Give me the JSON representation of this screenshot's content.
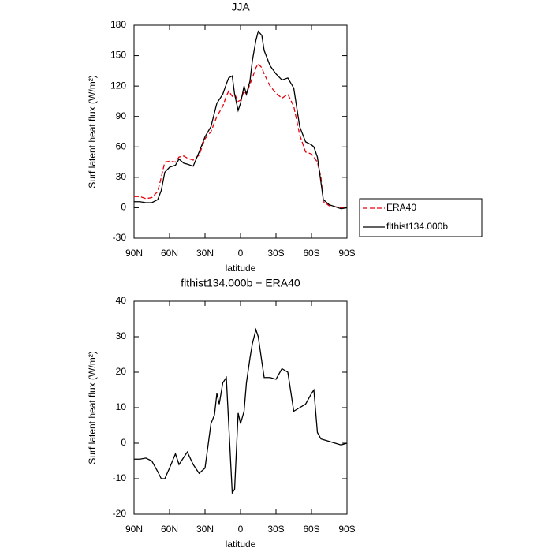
{
  "chart_data": [
    {
      "type": "line",
      "title": "JJA",
      "x_label": "latitude",
      "y_label": "Surf latent heat flux (W/m²)",
      "xlim": [
        90,
        -90
      ],
      "ylim": [
        -30,
        180
      ],
      "xticks": [
        {
          "value": 90,
          "label": "90N"
        },
        {
          "value": 60,
          "label": "60N"
        },
        {
          "value": 30,
          "label": "30N"
        },
        0,
        {
          "value": -30,
          "label": "30S"
        },
        {
          "value": -60,
          "label": "60S"
        },
        {
          "value": -90,
          "label": "90S"
        }
      ],
      "yticks": [
        -30,
        0,
        30,
        60,
        90,
        120,
        150,
        180
      ],
      "grid": false,
      "legend": "right",
      "x": [
        90,
        85,
        80,
        75,
        70,
        67,
        64,
        60,
        55,
        52,
        48,
        45,
        40,
        35,
        30,
        25,
        20,
        15,
        12,
        10,
        7,
        5,
        2,
        0,
        -3,
        -5,
        -8,
        -10,
        -13,
        -15,
        -18,
        -20,
        -25,
        -30,
        -35,
        -40,
        -45,
        -50,
        -55,
        -60,
        -62,
        -65,
        -68,
        -70,
        -75,
        -80,
        -85,
        -90
      ],
      "series": [
        {
          "name": "ERA40",
          "color": "#e8000b",
          "dash": true,
          "values": [
            11,
            11,
            9,
            10,
            16,
            30,
            45,
            46,
            45,
            50,
            51,
            49,
            47,
            52,
            68,
            75,
            90,
            100,
            110,
            115,
            110,
            112,
            105,
            106,
            115,
            112,
            122,
            128,
            138,
            142,
            138,
            132,
            120,
            113,
            108,
            112,
            100,
            72,
            55,
            53,
            50,
            45,
            30,
            6,
            2,
            1,
            0,
            0
          ]
        },
        {
          "name": "flthist134.000b",
          "color": "#000000",
          "dash": false,
          "values": [
            6,
            6,
            5,
            5,
            8,
            17,
            35,
            40,
            42,
            48,
            44,
            43,
            41,
            55,
            70,
            80,
            103,
            112,
            122,
            128,
            130,
            112,
            96,
            103,
            120,
            112,
            125,
            145,
            165,
            174,
            170,
            155,
            140,
            132,
            126,
            128,
            118,
            80,
            65,
            62,
            60,
            50,
            25,
            8,
            3,
            1,
            -1,
            0
          ]
        }
      ]
    },
    {
      "type": "line",
      "title": "flthist134.000b − ERA40",
      "x_label": "latitude",
      "y_label": "Surf latent heat flux (W/m²)",
      "xlim": [
        90,
        -90
      ],
      "ylim": [
        -20,
        40
      ],
      "xticks": [
        {
          "value": 90,
          "label": "90N"
        },
        {
          "value": 60,
          "label": "60N"
        },
        {
          "value": 30,
          "label": "30N"
        },
        0,
        {
          "value": -30,
          "label": "30S"
        },
        {
          "value": -60,
          "label": "60S"
        },
        {
          "value": -90,
          "label": "90S"
        }
      ],
      "yticks": [
        -20,
        -10,
        0,
        10,
        20,
        30,
        40
      ],
      "grid": false,
      "x": [
        90,
        85,
        80,
        75,
        70,
        67,
        64,
        60,
        55,
        52,
        48,
        45,
        40,
        35,
        30,
        25,
        22,
        20,
        18,
        15,
        12,
        7,
        5,
        2,
        0,
        -3,
        -5,
        -8,
        -10,
        -13,
        -15,
        -18,
        -20,
        -25,
        -30,
        -35,
        -40,
        -45,
        -50,
        -55,
        -60,
        -62,
        -65,
        -68,
        -70,
        -75,
        -80,
        -85,
        -90
      ],
      "series": [
        {
          "color": "#000000",
          "dash": false,
          "values": [
            -4.5,
            -4.5,
            -4.2,
            -5,
            -8,
            -10,
            -10,
            -7,
            -3,
            -6,
            -4,
            -2.5,
            -6,
            -8.5,
            -7,
            5.5,
            8,
            14,
            11,
            17,
            18.5,
            -14,
            -13,
            8.5,
            5.5,
            9,
            17,
            24,
            28,
            32,
            30,
            23,
            18.5,
            18.5,
            18,
            21,
            20,
            9,
            10,
            11,
            14,
            15,
            3,
            1.2,
            1,
            0.5,
            0,
            -0.5,
            0
          ]
        }
      ]
    }
  ]
}
